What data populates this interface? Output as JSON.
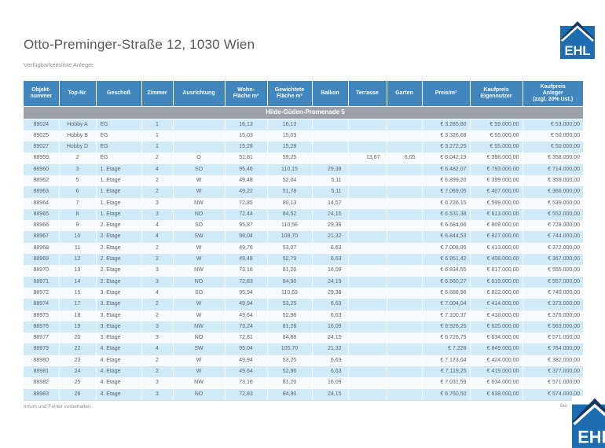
{
  "page": {
    "title": "Otto-Preminger-Straße 12, 1030 Wien",
    "subtitle": "Verfügbarkeitsliste Anleger",
    "footer_disclaimer": "Irrtum und Fehler vorbehalten.",
    "footer_page": "Sei",
    "logo_text": "EHL"
  },
  "colors": {
    "header_bg": "#4186bd",
    "group_bg": "#9aa1a8",
    "row_alt_bg": "#d1eaf8",
    "row_bg": "#f9fafb",
    "logo_blue": "#1d6db3",
    "logo_roof_navy": "#16375f"
  },
  "table": {
    "columns": [
      "Objekt-\nnummer",
      "Top-Nr.",
      "Geschoß",
      "Zimmer",
      "Ausrichtung",
      "Wohn-\nFläche m²",
      "Gewichtete\nFläche m²",
      "Balkon",
      "Terrasse",
      "Garten",
      "Preis/m²",
      "Kaufpreis\nEigennutzer",
      "Kaufpreis\nAnleger\n(zzgl. 20% Ust.)"
    ],
    "group_header": "Hilde-Güden-Promenade 5",
    "rows": [
      [
        "89024",
        "Hobby A",
        "EG",
        "1",
        "",
        "16,13",
        "16,13",
        "",
        "",
        "",
        "€ 3.285,80",
        "€ 59.000,00",
        "€ 53.000,00"
      ],
      [
        "89025",
        "Hobby B",
        "EG",
        "1",
        "",
        "15,03",
        "15,03",
        "",
        "",
        "",
        "€ 3.326,68",
        "€ 55.000,00",
        "€ 50.000,00"
      ],
      [
        "89027",
        "Hobby D",
        "EG",
        "1",
        "",
        "15,28",
        "15,28",
        "",
        "",
        "",
        "€ 3.272,25",
        "€ 55.000,00",
        "€ 50.000,00"
      ],
      [
        "88959",
        "2",
        "EG",
        "2",
        "O",
        "51,81",
        "59,25",
        "",
        "13,67",
        "6,05",
        "€ 6.042,19",
        "€ 398.000,00",
        "€ 358.000,00"
      ],
      [
        "88960",
        "3",
        "1. Etage",
        "4",
        "SO",
        "95,46",
        "110,15",
        "29,38",
        "",
        "",
        "€ 6.482,07",
        "€ 793.000,00",
        "€ 714.000,00"
      ],
      [
        "88962",
        "5",
        "1. Etage",
        "2",
        "W",
        "49,48",
        "52,04",
        "5,11",
        "",
        "",
        "€ 6.899,20",
        "€ 399.000,00",
        "€ 359.000,00"
      ],
      [
        "88963",
        "6",
        "1. Etage",
        "2",
        "W",
        "49,22",
        "51,78",
        "5,11",
        "",
        "",
        "€ 7.069,05",
        "€ 407.000,00",
        "€ 366.000,00"
      ],
      [
        "88964",
        "7",
        "1. Etage",
        "3",
        "NW",
        "72,85",
        "80,13",
        "14,57",
        "",
        "",
        "€ 6.726,15",
        "€ 599.000,00",
        "€ 539.000,00"
      ],
      [
        "88965",
        "8",
        "1. Etage",
        "3",
        "NO",
        "72,44",
        "84,52",
        "24,15",
        "",
        "",
        "€ 6.531,38",
        "€ 613.000,00",
        "€ 552.000,00"
      ],
      [
        "88966",
        "9",
        "2. Etage",
        "4",
        "SO",
        "95,87",
        "110,56",
        "29,38",
        "",
        "",
        "€ 6.584,66",
        "€ 809.000,00",
        "€ 728.000,00"
      ],
      [
        "88967",
        "10",
        "2. Etage",
        "4",
        "SW",
        "98,04",
        "108,70",
        "21,32",
        "",
        "",
        "€ 6.844,53",
        "€ 827.000,00",
        "€ 744.000,00"
      ],
      [
        "88968",
        "11",
        "2. Etage",
        "2",
        "W",
        "49,76",
        "53,07",
        "6,63",
        "",
        "",
        "€ 7.008,95",
        "€ 413.000,00",
        "€ 372.000,00"
      ],
      [
        "88969",
        "12",
        "2. Etage",
        "2",
        "W",
        "49,48",
        "52,79",
        "6,63",
        "",
        "",
        "€ 6.951,42",
        "€ 408.000,00",
        "€ 367.000,00"
      ],
      [
        "88970",
        "13",
        "2. Etage",
        "3",
        "NW",
        "73,16",
        "81,20",
        "16,09",
        "",
        "",
        "€ 6.834,55",
        "€ 617.000,00",
        "€ 555.000,00"
      ],
      [
        "88971",
        "14",
        "2. Etage",
        "3",
        "NO",
        "72,83",
        "84,90",
        "24,15",
        "",
        "",
        "€ 6.560,27",
        "€ 619.000,00",
        "€ 557.000,00"
      ],
      [
        "88972",
        "15",
        "3. Etage",
        "4",
        "SO",
        "95,94",
        "110,63",
        "29,38",
        "",
        "",
        "€ 6.688,96",
        "€ 822.000,00",
        "€ 740.000,00"
      ],
      [
        "88974",
        "17",
        "3. Etage",
        "2",
        "W",
        "49,94",
        "53,25",
        "6,63",
        "",
        "",
        "€ 7.004,04",
        "€ 414.000,00",
        "€ 373.000,00"
      ],
      [
        "88975",
        "18",
        "3. Etage",
        "2",
        "W",
        "49,64",
        "52,96",
        "6,63",
        "",
        "",
        "€ 7.100,37",
        "€ 418.000,00",
        "€ 376.000,00"
      ],
      [
        "88976",
        "19",
        "3. Etage",
        "3",
        "NW",
        "73,24",
        "81,28",
        "16,09",
        "",
        "",
        "€ 6.926,25",
        "€ 625.000,00",
        "€ 563.000,00"
      ],
      [
        "88977",
        "20",
        "3. Etage",
        "3",
        "NO",
        "72,81",
        "84,88",
        "24,15",
        "",
        "",
        "€ 6.726,75",
        "€ 634.000,00",
        "€ 571.000,00"
      ],
      [
        "88979",
        "22",
        "4. Etage",
        "4",
        "SW",
        "95,04",
        "105,70",
        "21,32",
        "",
        "",
        "€ 7.228",
        "€ 849.000,00",
        "€ 764.000,00"
      ],
      [
        "88980",
        "23",
        "4. Etage",
        "2",
        "W",
        "49,94",
        "53,25",
        "6,63",
        "",
        "",
        "€ 7.173,04",
        "€ 424.000,00",
        "€ 382.000,00"
      ],
      [
        "88981",
        "24",
        "4. Etage",
        "2",
        "W",
        "49,64",
        "52,96",
        "6,63",
        "",
        "",
        "€ 7.119,25",
        "€ 419.000,00",
        "€ 377.000,00"
      ],
      [
        "88982",
        "25",
        "4. Etage",
        "3",
        "NW",
        "73,16",
        "81,20",
        "16,09",
        "",
        "",
        "€ 7.031,59",
        "€ 634.000,00",
        "€ 571.000,00"
      ],
      [
        "88983",
        "26",
        "4. Etage",
        "3",
        "NO",
        "72,83",
        "84,90",
        "24,15",
        "",
        "",
        "€ 6.760,50",
        "€ 638.000,00",
        "€ 574.000,00"
      ]
    ]
  }
}
